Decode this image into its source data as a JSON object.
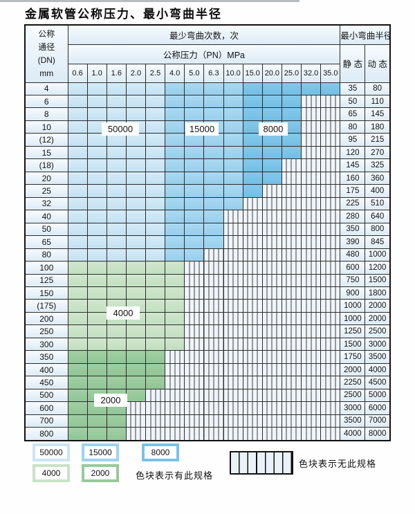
{
  "title": "金属软管公称压力、最小弯曲半径",
  "table": {
    "corner_header_lines": [
      "公称",
      "通径",
      "(DN)",
      "mm"
    ],
    "bend_cycles_header": "最少弯曲次数，次",
    "pressure_header": "公称压力（PN）MPa",
    "radius_header": "最小弯曲半径",
    "static_header": "静 态",
    "dynamic_header": "动 态",
    "pressure_columns": [
      "0.6",
      "1.0",
      "1.6",
      "2.0",
      "2.5",
      "4.0",
      "5.0",
      "6.3",
      "10.0",
      "15.0",
      "20.0",
      "25.0",
      "32.0",
      "35.0"
    ],
    "rows": [
      {
        "dn": "4",
        "colored_cols": 14,
        "static": "35",
        "dynamic": "80"
      },
      {
        "dn": "6",
        "colored_cols": 12,
        "static": "50",
        "dynamic": "110"
      },
      {
        "dn": "8",
        "colored_cols": 12,
        "static": "65",
        "dynamic": "145"
      },
      {
        "dn": "10",
        "colored_cols": 12,
        "static": "80",
        "dynamic": "180"
      },
      {
        "dn": "(12)",
        "colored_cols": 12,
        "static": "95",
        "dynamic": "215"
      },
      {
        "dn": "15",
        "colored_cols": 12,
        "static": "120",
        "dynamic": "270"
      },
      {
        "dn": "(18)",
        "colored_cols": 11,
        "static": "145",
        "dynamic": "325"
      },
      {
        "dn": "20",
        "colored_cols": 11,
        "static": "160",
        "dynamic": "360"
      },
      {
        "dn": "25",
        "colored_cols": 10,
        "static": "175",
        "dynamic": "400"
      },
      {
        "dn": "32",
        "colored_cols": 9,
        "static": "225",
        "dynamic": "510"
      },
      {
        "dn": "40",
        "colored_cols": 8,
        "static": "280",
        "dynamic": "640"
      },
      {
        "dn": "50",
        "colored_cols": 8,
        "static": "350",
        "dynamic": "800"
      },
      {
        "dn": "65",
        "colored_cols": 8,
        "static": "390",
        "dynamic": "845"
      },
      {
        "dn": "80",
        "colored_cols": 7,
        "static": "480",
        "dynamic": "1000"
      },
      {
        "dn": "100",
        "colored_cols": 6,
        "static": "600",
        "dynamic": "1200"
      },
      {
        "dn": "125",
        "colored_cols": 6,
        "static": "750",
        "dynamic": "1500"
      },
      {
        "dn": "150",
        "colored_cols": 6,
        "static": "900",
        "dynamic": "1800"
      },
      {
        "dn": "(175)",
        "colored_cols": 6,
        "static": "1000",
        "dynamic": "2000"
      },
      {
        "dn": "200",
        "colored_cols": 6,
        "static": "1000",
        "dynamic": "2000"
      },
      {
        "dn": "250",
        "colored_cols": 6,
        "static": "1250",
        "dynamic": "2500"
      },
      {
        "dn": "300",
        "colored_cols": 6,
        "static": "1500",
        "dynamic": "3000"
      },
      {
        "dn": "350",
        "colored_cols": 5,
        "static": "1750",
        "dynamic": "3500"
      },
      {
        "dn": "400",
        "colored_cols": 5,
        "static": "2000",
        "dynamic": "4000"
      },
      {
        "dn": "450",
        "colored_cols": 5,
        "static": "2250",
        "dynamic": "4500"
      },
      {
        "dn": "500",
        "colored_cols": 4,
        "static": "2500",
        "dynamic": "5000"
      },
      {
        "dn": "600",
        "colored_cols": 3,
        "static": "3000",
        "dynamic": "6000"
      },
      {
        "dn": "700",
        "colored_cols": 3,
        "static": "3500",
        "dynamic": "7000"
      },
      {
        "dn": "800",
        "colored_cols": 3,
        "static": "4000",
        "dynamic": "8000"
      }
    ],
    "cycle_labels": [
      {
        "text": "50000"
      },
      {
        "text": "15000"
      },
      {
        "text": "8000"
      },
      {
        "text": "4000"
      },
      {
        "text": "2000"
      }
    ],
    "bands": {
      "blue_pale_pressure_range": "0.6–2.5 (50000次)",
      "blue_mid_pressure_range": "4.0–10.0 (15000次)",
      "blue_dark_pressure_range": "15.0–35.0 (8000次)",
      "green_light_dn_range": "100–300 (4000次)",
      "green_dark_dn_range": "350–800 (2000次)"
    }
  },
  "legend": {
    "items": [
      {
        "label": "50000",
        "color": "#cbe5f5"
      },
      {
        "label": "15000",
        "color": "#9ed3ef"
      },
      {
        "label": "8000",
        "color": "#7ac2e8"
      },
      {
        "label": "4000",
        "color": "#c9e2c6"
      },
      {
        "label": "2000",
        "color": "#97c99b"
      }
    ],
    "has_spec_text": "色块表示有此规格",
    "no_spec_text": "色块表示无此规格"
  },
  "colors": {
    "grid_line": "#2b2b2b",
    "header_cell": "#dcebf6",
    "no_spec_cell": "#eff5fa"
  }
}
